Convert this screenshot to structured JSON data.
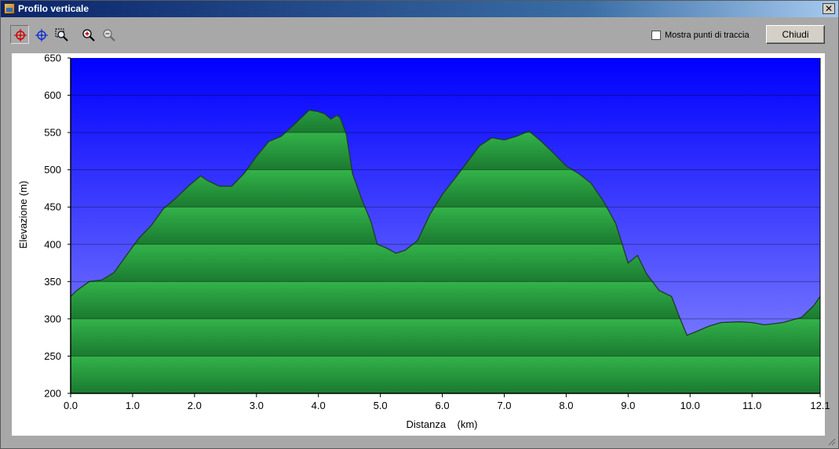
{
  "window": {
    "title": "Profilo verticale",
    "close_glyph": "✕"
  },
  "toolbar": {
    "tools": [
      {
        "name": "crosshair-red-icon",
        "active": true
      },
      {
        "name": "crosshair-blue-icon",
        "active": false
      },
      {
        "name": "zoom-area-icon",
        "active": false
      },
      {
        "name": "zoom-in-icon",
        "active": false
      },
      {
        "name": "zoom-out-icon",
        "active": false
      }
    ],
    "show_track_points_label": "Mostra punti di traccia",
    "show_track_points_checked": false,
    "close_button_label": "Chiudi"
  },
  "colors": {
    "sky_top": "#0000ff",
    "sky_bottom": "#8c8cff",
    "terrain_light": "#33b34a",
    "terrain_dark": "#1a7a30",
    "outline": "#1d3d24"
  },
  "chart_data": {
    "type": "area",
    "xlabel": "Distanza    (km)",
    "ylabel": "Elevazione (m)",
    "xlim": [
      0.0,
      12.1
    ],
    "ylim": [
      200,
      650
    ],
    "x_ticks": [
      "0.0",
      "1.0",
      "2.0",
      "3.0",
      "4.0",
      "5.0",
      "6.0",
      "7.0",
      "8.0",
      "9.0",
      "10.0",
      "11.0",
      "12.1"
    ],
    "x_tick_values": [
      0,
      1,
      2,
      3,
      4,
      5,
      6,
      7,
      8,
      9,
      10,
      11,
      12.1
    ],
    "y_ticks": [
      "650",
      "600",
      "550",
      "500",
      "450",
      "400",
      "350",
      "300",
      "250",
      "200"
    ],
    "y_tick_values": [
      650,
      600,
      550,
      500,
      450,
      400,
      350,
      300,
      250,
      200
    ],
    "grid": true,
    "series": [
      {
        "x": [
          0.0,
          0.1,
          0.3,
          0.5,
          0.7,
          0.9,
          1.1,
          1.3,
          1.5,
          1.7,
          1.9,
          2.1,
          2.2,
          2.4,
          2.6,
          2.8,
          3.0,
          3.2,
          3.4,
          3.6,
          3.75,
          3.85,
          4.0,
          4.1,
          4.2,
          4.3,
          4.35,
          4.45,
          4.55,
          4.7,
          4.85,
          4.95,
          5.1,
          5.25,
          5.4,
          5.6,
          5.8,
          6.0,
          6.2,
          6.4,
          6.6,
          6.8,
          7.0,
          7.2,
          7.4,
          7.6,
          7.8,
          8.0,
          8.2,
          8.4,
          8.6,
          8.8,
          9.0,
          9.15,
          9.3,
          9.5,
          9.7,
          9.85,
          9.95,
          10.1,
          10.3,
          10.5,
          10.8,
          11.0,
          11.2,
          11.5,
          11.8,
          12.0,
          12.1
        ],
        "y": [
          330,
          338,
          350,
          352,
          362,
          385,
          408,
          425,
          448,
          462,
          478,
          492,
          486,
          478,
          478,
          495,
          518,
          538,
          545,
          560,
          572,
          580,
          578,
          575,
          568,
          573,
          570,
          548,
          495,
          460,
          430,
          400,
          395,
          388,
          392,
          405,
          440,
          467,
          488,
          510,
          532,
          543,
          540,
          545,
          552,
          538,
          522,
          505,
          495,
          482,
          458,
          428,
          375,
          385,
          360,
          338,
          330,
          298,
          278,
          283,
          290,
          295,
          296,
          295,
          292,
          295,
          302,
          318,
          330
        ]
      }
    ]
  }
}
